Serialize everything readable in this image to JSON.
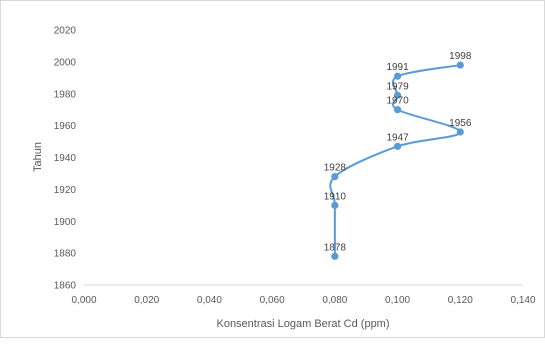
{
  "chart_data": {
    "type": "scatter",
    "xlabel": "Konsentrasi Logam Berat Cd (ppm)",
    "ylabel": "Tahun",
    "xlim": [
      0.0,
      0.14
    ],
    "ylim": [
      1860,
      2020
    ],
    "x_ticks": [
      "0,000",
      "0,020",
      "0,040",
      "0,060",
      "0,080",
      "0,100",
      "0,120",
      "0,140"
    ],
    "y_ticks": [
      "1860",
      "1880",
      "1900",
      "1920",
      "1940",
      "1960",
      "1980",
      "2000",
      "2020"
    ],
    "grid": false,
    "smooth_line": true,
    "series_color": "#5b9bd5",
    "points": [
      {
        "x": 0.08,
        "y": 1878,
        "label": "1878"
      },
      {
        "x": 0.08,
        "y": 1910,
        "label": "1910"
      },
      {
        "x": 0.08,
        "y": 1928,
        "label": "1928"
      },
      {
        "x": 0.1,
        "y": 1947,
        "label": "1947"
      },
      {
        "x": 0.12,
        "y": 1956,
        "label": "1956"
      },
      {
        "x": 0.1,
        "y": 1970,
        "label": "1970"
      },
      {
        "x": 0.1,
        "y": 1979,
        "label": "1979"
      },
      {
        "x": 0.1,
        "y": 1991,
        "label": "1991"
      },
      {
        "x": 0.12,
        "y": 1998,
        "label": "1998"
      }
    ]
  }
}
